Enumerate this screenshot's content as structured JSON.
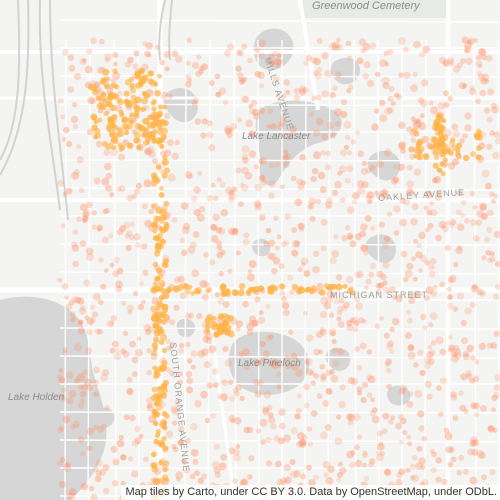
{
  "map": {
    "labels": {
      "cemetery": "Greenwood Cemetery",
      "lake_lancaster": "Lake Lancaster",
      "lake_pineloch": "Lake Pineloch",
      "lake_holden": "Lake Holden",
      "mills_avenue": "MILLS AVENUE",
      "oakley_avenue": "OAKLEY AVENUE",
      "michigan_street": "MICHIGAN STREET",
      "south_orange_avenue": "SOUTH ORANGE AVENUE"
    },
    "attribution": "Map tiles by Carto, under CC BY 3.0. Data by OpenStreetMap, under ODbL.",
    "colors": {
      "background": "#f4f4f2",
      "water": "#d4d4d4",
      "road": "#ffffff",
      "park": "#e9ebe6",
      "point_light": "#ff9166",
      "point_dense": "#ffb347"
    }
  }
}
